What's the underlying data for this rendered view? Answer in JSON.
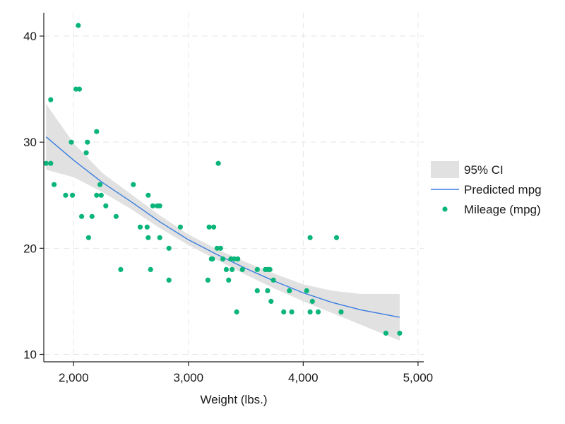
{
  "chart_data": {
    "type": "scatter",
    "title": "",
    "xlabel": "Weight (lbs.)",
    "ylabel": "",
    "xlim": [
      1740,
      5050
    ],
    "ylim": [
      9.3,
      42.2
    ],
    "xticks": [
      2000,
      3000,
      4000,
      5000
    ],
    "xtick_labels": [
      "2,000",
      "3,000",
      "4,000",
      "5,000"
    ],
    "yticks": [
      10,
      20,
      30,
      40
    ],
    "ytick_labels": [
      "10",
      "20",
      "30",
      "40"
    ],
    "grid": true,
    "legend_position": "right",
    "legend": [
      {
        "key": "ci",
        "label": "95% CI"
      },
      {
        "key": "fit",
        "label": "Predicted mpg"
      },
      {
        "key": "points",
        "label": "Mileage (mpg)"
      }
    ],
    "colors": {
      "ci": "#e1e1e1",
      "fit": "#3a7ee0",
      "points": "#0ab57a",
      "grid": "#e6e6e6",
      "axis": "#222222"
    },
    "series": [
      {
        "name": "Mileage (mpg)",
        "kind": "scatter",
        "points": [
          [
            1760,
            28
          ],
          [
            1800,
            28
          ],
          [
            1800,
            34
          ],
          [
            1830,
            26
          ],
          [
            1930,
            25
          ],
          [
            1980,
            30
          ],
          [
            1990,
            25
          ],
          [
            2020,
            35
          ],
          [
            2040,
            41
          ],
          [
            2050,
            35
          ],
          [
            2070,
            23
          ],
          [
            2110,
            29
          ],
          [
            2120,
            30
          ],
          [
            2130,
            21
          ],
          [
            2160,
            23
          ],
          [
            2200,
            25
          ],
          [
            2200,
            31
          ],
          [
            2230,
            26
          ],
          [
            2240,
            25
          ],
          [
            2280,
            24
          ],
          [
            2370,
            23
          ],
          [
            2410,
            18
          ],
          [
            2520,
            26
          ],
          [
            2580,
            22
          ],
          [
            2640,
            22
          ],
          [
            2650,
            25
          ],
          [
            2650,
            21
          ],
          [
            2670,
            18
          ],
          [
            2690,
            24
          ],
          [
            2730,
            24
          ],
          [
            2750,
            21
          ],
          [
            2750,
            24
          ],
          [
            2830,
            20
          ],
          [
            2830,
            17
          ],
          [
            2930,
            22
          ],
          [
            3170,
            17
          ],
          [
            3180,
            22
          ],
          [
            3200,
            19
          ],
          [
            3210,
            19
          ],
          [
            3220,
            22
          ],
          [
            3250,
            20
          ],
          [
            3260,
            28
          ],
          [
            3280,
            20
          ],
          [
            3300,
            19
          ],
          [
            3330,
            18
          ],
          [
            3350,
            17
          ],
          [
            3370,
            19
          ],
          [
            3380,
            18
          ],
          [
            3400,
            19
          ],
          [
            3420,
            14
          ],
          [
            3430,
            19
          ],
          [
            3470,
            18
          ],
          [
            3600,
            18
          ],
          [
            3600,
            16
          ],
          [
            3670,
            18
          ],
          [
            3690,
            18
          ],
          [
            3690,
            16
          ],
          [
            3710,
            18
          ],
          [
            3720,
            15
          ],
          [
            3740,
            17
          ],
          [
            3830,
            14
          ],
          [
            3880,
            16
          ],
          [
            3900,
            14
          ],
          [
            4030,
            16
          ],
          [
            4060,
            14
          ],
          [
            4060,
            21
          ],
          [
            4080,
            15
          ],
          [
            4130,
            14
          ],
          [
            4290,
            21
          ],
          [
            4330,
            14
          ],
          [
            4720,
            12
          ],
          [
            4840,
            12
          ]
        ]
      },
      {
        "name": "Predicted mpg",
        "kind": "line",
        "points": [
          [
            1760,
            30.5
          ],
          [
            2000,
            28.3
          ],
          [
            2250,
            26.2
          ],
          [
            2500,
            24.4
          ],
          [
            2750,
            22.5
          ],
          [
            3000,
            20.8
          ],
          [
            3250,
            19.4
          ],
          [
            3500,
            18.1
          ],
          [
            3750,
            16.9
          ],
          [
            4000,
            15.8
          ],
          [
            4250,
            14.9
          ],
          [
            4500,
            14.2
          ],
          [
            4840,
            13.5
          ]
        ]
      },
      {
        "name": "95% CI",
        "kind": "band",
        "x": [
          1760,
          2000,
          2250,
          2500,
          2750,
          3000,
          3250,
          3500,
          3750,
          4000,
          4250,
          4500,
          4840
        ],
        "lower": [
          27.4,
          26.7,
          25.3,
          23.7,
          21.9,
          20.3,
          18.9,
          17.5,
          16.2,
          15.0,
          13.9,
          12.8,
          11.3
        ],
        "upper": [
          33.6,
          29.9,
          27.1,
          25.1,
          23.1,
          21.3,
          19.9,
          18.7,
          17.6,
          16.6,
          16.0,
          15.7,
          15.7
        ]
      }
    ]
  }
}
